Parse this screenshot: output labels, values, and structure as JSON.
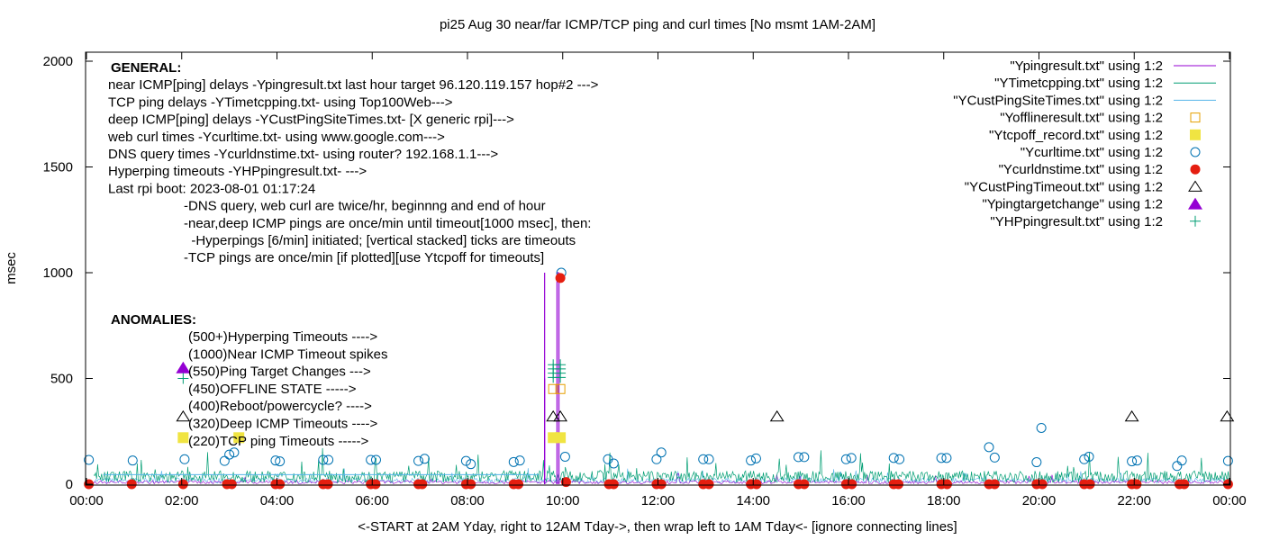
{
  "chart_data": {
    "type": "line",
    "title": "pi25 Aug 30  near/far ICMP/TCP ping and curl times [No msmt 1AM-2AM]",
    "xlabel": "<-START at 2AM Yday, right to 12AM Tday->, then wrap left to 1AM Tday<- [ignore connecting lines]",
    "ylabel": "msec",
    "x_range_hours": [
      0,
      24
    ],
    "ylim": [
      0,
      2050
    ],
    "x_ticks": [
      {
        "h": 0,
        "label": "00:00"
      },
      {
        "h": 2,
        "label": "02:00"
      },
      {
        "h": 4,
        "label": "04:00"
      },
      {
        "h": 6,
        "label": "06:00"
      },
      {
        "h": 8,
        "label": "08:00"
      },
      {
        "h": 10,
        "label": "10:00"
      },
      {
        "h": 12,
        "label": "12:00"
      },
      {
        "h": 14,
        "label": "14:00"
      },
      {
        "h": 16,
        "label": "16:00"
      },
      {
        "h": 18,
        "label": "18:00"
      },
      {
        "h": 20,
        "label": "20:00"
      },
      {
        "h": 22,
        "label": "22:00"
      },
      {
        "h": 24,
        "label": "00:00"
      }
    ],
    "y_ticks": [
      {
        "v": 0,
        "label": "0"
      },
      {
        "v": 500,
        "label": "500"
      },
      {
        "v": 1000,
        "label": "1000"
      },
      {
        "v": 1500,
        "label": "1500"
      },
      {
        "v": 2000,
        "label": "2000"
      }
    ],
    "legend_position": "top-right",
    "legend": [
      {
        "label": "\"Ypingresult.txt\" using 1:2",
        "symbol": "line",
        "color": "#9400d3"
      },
      {
        "label": "\"YTimetcpping.txt\" using 1:2",
        "symbol": "line",
        "color": "#009e73"
      },
      {
        "label": "\"YCustPingSiteTimes.txt\" using 1:2",
        "symbol": "line",
        "color": "#56b4e9"
      },
      {
        "label": "\"Yofflineresult.txt\" using 1:2",
        "symbol": "open-square",
        "color": "#e69f00"
      },
      {
        "label": "\"Ytcpoff_record.txt\" using 1:2",
        "symbol": "filled-square",
        "color": "#f0e442"
      },
      {
        "label": "\"Ycurltime.txt\" using 1:2",
        "symbol": "open-circle",
        "color": "#0072b2"
      },
      {
        "label": "\"Ycurldnstime.txt\" using 1:2",
        "symbol": "filled-circle",
        "color": "#e51e10"
      },
      {
        "label": "\"YCustPingTimeout.txt\" using 1:2",
        "symbol": "open-triangle",
        "color": "#000000"
      },
      {
        "label": "\"Ypingtargetchange\" using 1:2",
        "symbol": "filled-triangle",
        "color": "#9400d3"
      },
      {
        "label": "\"YHPpingresult.txt\" using 1:2",
        "symbol": "plus",
        "color": "#009e73"
      }
    ],
    "general_notes": [
      {
        "text": "GENERAL:",
        "bold": true,
        "indent": 0
      },
      {
        "text": "near ICMP[ping] delays -Ypingresult.txt last hour target 96.120.119.157 hop#2 --->",
        "bold": false,
        "indent": 0
      },
      {
        "text": "TCP ping delays -YTimetcpping.txt- using Top100Web--->",
        "bold": false,
        "indent": 0
      },
      {
        "text": "deep ICMP[ping] delays -YCustPingSiteTimes.txt- [X generic rpi]--->",
        "bold": false,
        "indent": 0
      },
      {
        "text": "web curl times -Ycurltime.txt- using www.google.com--->",
        "bold": false,
        "indent": 0
      },
      {
        "text": "DNS query times -Ycurldnstime.txt- using router? 192.168.1.1--->",
        "bold": false,
        "indent": 0
      },
      {
        "text": "Hyperping timeouts -YHPpingresult.txt- --->",
        "bold": false,
        "indent": 0
      },
      {
        "text": "Last rpi boot: 2023-08-01 01:17:24",
        "bold": false,
        "indent": 0
      },
      {
        "text": "-DNS query, web curl are twice/hr, beginnng and end of hour",
        "bold": false,
        "indent": 1
      },
      {
        "text": "-near,deep ICMP pings are once/min until timeout[1000 msec], then:",
        "bold": false,
        "indent": 1
      },
      {
        "text": "  -Hyperpings [6/min] initiated; [vertical stacked] ticks are timeouts",
        "bold": false,
        "indent": 1
      },
      {
        "text": "-TCP pings are once/min [if plotted][use Ytcpoff for timeouts]",
        "bold": false,
        "indent": 1
      }
    ],
    "anomalies_title": "ANOMALIES:",
    "anomalies": [
      {
        "text": "(500+)Hyperping Timeouts ---->",
        "marker": "plus"
      },
      {
        "text": "(1000)Near ICMP Timeout spikes",
        "marker": "none"
      },
      {
        "text": "(550)Ping Target Changes --->",
        "marker": "filled-triangle"
      },
      {
        "text": "(450)OFFLINE STATE ----->",
        "marker": "none"
      },
      {
        "text": "(400)Reboot/powercycle? ---->",
        "marker": "none"
      },
      {
        "text": "(320)Deep ICMP Timeouts ---->",
        "marker": "open-triangle"
      },
      {
        "text": "(220)TCP ping Timeouts ----->",
        "marker": "filled-square"
      }
    ],
    "series": [
      {
        "name": "\"Ycurltime.txt\" using 1:2",
        "type": "scatter",
        "marker": "open-circle",
        "points": [
          [
            0.05,
            115
          ],
          [
            0.97,
            112
          ],
          [
            2.06,
            118
          ],
          [
            2.9,
            110
          ],
          [
            3.0,
            140
          ],
          [
            3.1,
            150
          ],
          [
            3.97,
            112
          ],
          [
            4.06,
            108
          ],
          [
            4.97,
            115
          ],
          [
            5.08,
            115
          ],
          [
            5.97,
            115
          ],
          [
            6.08,
            115
          ],
          [
            6.97,
            110
          ],
          [
            7.1,
            120
          ],
          [
            7.97,
            110
          ],
          [
            8.07,
            95
          ],
          [
            8.97,
            105
          ],
          [
            9.1,
            112
          ],
          [
            9.97,
            1000
          ],
          [
            10.05,
            130
          ],
          [
            10.95,
            118
          ],
          [
            11.07,
            98
          ],
          [
            11.97,
            118
          ],
          [
            12.07,
            150
          ],
          [
            12.95,
            118
          ],
          [
            13.07,
            118
          ],
          [
            13.95,
            112
          ],
          [
            14.06,
            122
          ],
          [
            14.95,
            128
          ],
          [
            15.07,
            128
          ],
          [
            15.95,
            118
          ],
          [
            16.06,
            124
          ],
          [
            16.95,
            124
          ],
          [
            17.07,
            118
          ],
          [
            17.95,
            124
          ],
          [
            18.06,
            124
          ],
          [
            18.95,
            175
          ],
          [
            19.07,
            126
          ],
          [
            19.95,
            104
          ],
          [
            20.05,
            266
          ],
          [
            20.95,
            118
          ],
          [
            21.05,
            130
          ],
          [
            21.95,
            108
          ],
          [
            22.06,
            112
          ],
          [
            22.9,
            86
          ],
          [
            23.0,
            112
          ],
          [
            23.97,
            110
          ]
        ]
      },
      {
        "name": "\"Ycurldnstime.txt\" using 1:2",
        "type": "scatter",
        "marker": "filled-circle",
        "points": [
          [
            0.05,
            0
          ],
          [
            0.95,
            0
          ],
          [
            2.03,
            0
          ],
          [
            2.95,
            0
          ],
          [
            3.05,
            0
          ],
          [
            3.97,
            0
          ],
          [
            4.06,
            0
          ],
          [
            4.97,
            0
          ],
          [
            5.07,
            0
          ],
          [
            5.97,
            0
          ],
          [
            6.07,
            0
          ],
          [
            6.97,
            0
          ],
          [
            7.05,
            0
          ],
          [
            7.97,
            0
          ],
          [
            8.07,
            0
          ],
          [
            8.97,
            0
          ],
          [
            9.07,
            0
          ],
          [
            9.95,
            975
          ],
          [
            10.07,
            10
          ],
          [
            10.97,
            0
          ],
          [
            11.07,
            0
          ],
          [
            11.97,
            0
          ],
          [
            12.07,
            0
          ],
          [
            12.95,
            0
          ],
          [
            13.07,
            0
          ],
          [
            13.95,
            0
          ],
          [
            14.07,
            0
          ],
          [
            14.95,
            0
          ],
          [
            15.07,
            0
          ],
          [
            15.95,
            0
          ],
          [
            16.07,
            0
          ],
          [
            16.95,
            0
          ],
          [
            17.05,
            0
          ],
          [
            17.95,
            0
          ],
          [
            18.07,
            0
          ],
          [
            18.95,
            0
          ],
          [
            19.07,
            0
          ],
          [
            19.95,
            0
          ],
          [
            20.07,
            0
          ],
          [
            20.95,
            0
          ],
          [
            21.07,
            0
          ],
          [
            21.95,
            0
          ],
          [
            22.05,
            0
          ],
          [
            22.95,
            0
          ],
          [
            23.05,
            0
          ],
          [
            23.97,
            0
          ]
        ]
      },
      {
        "name": "\"YCustPingTimeout.txt\" using 1:2",
        "type": "scatter",
        "marker": "open-triangle",
        "points": [
          [
            2.03,
            320
          ],
          [
            9.8,
            320
          ],
          [
            9.95,
            320
          ],
          [
            14.5,
            320
          ],
          [
            21.95,
            320
          ],
          [
            23.95,
            320
          ]
        ]
      },
      {
        "name": "\"Ypingtargetchange\" using 1:2",
        "type": "scatter",
        "marker": "filled-triangle",
        "points": [
          [
            2.03,
            550
          ]
        ]
      },
      {
        "name": "\"YHPpingresult.txt\" using 1:2",
        "type": "scatter",
        "marker": "plus",
        "points": [
          [
            2.03,
            500
          ],
          [
            9.8,
            505
          ],
          [
            9.8,
            525
          ],
          [
            9.8,
            545
          ],
          [
            9.8,
            565
          ],
          [
            9.95,
            505
          ],
          [
            9.95,
            525
          ],
          [
            9.95,
            545
          ],
          [
            9.95,
            565
          ]
        ]
      },
      {
        "name": "\"Yofflineresult.txt\" using 1:2",
        "type": "scatter",
        "marker": "open-square",
        "points": [
          [
            9.8,
            450
          ],
          [
            9.95,
            450
          ]
        ]
      },
      {
        "name": "\"Ytcpoff_record.txt\" using 1:2",
        "type": "scatter",
        "marker": "filled-square",
        "points": [
          [
            2.03,
            220
          ],
          [
            3.2,
            220
          ],
          [
            9.8,
            220
          ],
          [
            9.95,
            220
          ]
        ]
      },
      {
        "name": "\"Ypingresult.txt\" using 1:2",
        "type": "line",
        "spikes": [
          [
            9.62,
            1000
          ],
          [
            9.62,
            500
          ],
          [
            9.88,
            1000
          ],
          [
            9.92,
            1000
          ]
        ]
      }
    ]
  }
}
